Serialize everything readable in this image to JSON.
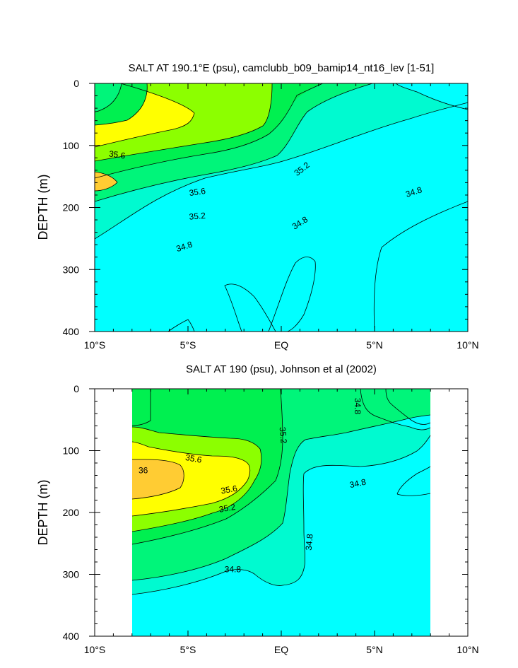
{
  "chart_data": [
    {
      "type": "contour",
      "title": "SALT AT 190.1°E (psu), camclubb_b09_bamip14_nt16_lev [1-51]",
      "ylabel": "DEPTH (m)",
      "xlim": [
        -10,
        10
      ],
      "ylim": [
        400,
        0
      ],
      "y_inverted": true,
      "x_ticks": [
        -10,
        -5,
        0,
        5,
        10
      ],
      "x_tick_labels": [
        "10°S",
        "5°S",
        "EQ",
        "5°N",
        "10°N"
      ],
      "y_ticks": [
        0,
        100,
        200,
        300,
        400
      ],
      "y_tick_labels": [
        "0",
        "100",
        "200",
        "300",
        "400"
      ],
      "data_extent_x": [
        -10,
        10
      ],
      "levels_fill": [
        {
          "min": null,
          "max": 34.8,
          "color": "#00ffff"
        },
        {
          "min": 34.8,
          "max": 35.0,
          "color": "#00fad0"
        },
        {
          "min": 35.0,
          "max": 35.2,
          "color": "#00f57a"
        },
        {
          "min": 35.2,
          "max": 35.4,
          "color": "#00f050"
        },
        {
          "min": 35.4,
          "max": 35.6,
          "color": "#8cff00"
        },
        {
          "min": 35.6,
          "max": 36.0,
          "color": "#ffff00"
        },
        {
          "min": 36.0,
          "max": null,
          "color": "#ffcc33"
        }
      ],
      "contour_labels": [
        {
          "text": "35.6",
          "x": -8.8,
          "y": 115,
          "angle": 8
        },
        {
          "text": "35.6",
          "x": -4.5,
          "y": 175,
          "angle": -8
        },
        {
          "text": "35.2",
          "x": 1.1,
          "y": 138,
          "angle": -38
        },
        {
          "text": "35.2",
          "x": -4.5,
          "y": 214,
          "angle": -5
        },
        {
          "text": "34.8",
          "x": -5.2,
          "y": 263,
          "angle": -18
        },
        {
          "text": "34.8",
          "x": 1.0,
          "y": 225,
          "angle": -32
        },
        {
          "text": "34.8",
          "x": 7.1,
          "y": 175,
          "angle": -18
        }
      ],
      "contours": [
        {
          "level": 34.8,
          "points": [
            [
              -10,
              338
            ],
            [
              -8,
              305
            ],
            [
              -6,
              272
            ],
            [
              -4,
              252
            ],
            [
              -2,
              241
            ],
            [
              0,
              232
            ],
            [
              2,
              218
            ],
            [
              3,
              210
            ],
            [
              5,
              198
            ],
            [
              7,
              180
            ],
            [
              9,
              158
            ],
            [
              10,
              145
            ]
          ]
        },
        {
          "level": 35.0,
          "points": [
            [
              -10,
              285
            ],
            [
              -8,
              266
            ],
            [
              -6,
              254
            ],
            [
              -4,
              244
            ],
            [
              -2,
              230
            ],
            [
              0,
              215
            ],
            [
              1,
              200
            ],
            [
              2,
              160
            ],
            [
              3,
              140
            ],
            [
              4,
              125
            ],
            [
              5.5,
              112
            ],
            [
              7,
              98
            ],
            [
              8,
              90
            ],
            [
              8.5,
              80
            ],
            [
              8,
              72
            ],
            [
              6,
              65
            ],
            [
              5,
              55
            ],
            [
              4.7,
              40
            ],
            [
              4.6,
              0
            ]
          ]
        },
        {
          "level": 35.2,
          "points": [
            [
              -10,
              252
            ],
            [
              -8,
              233
            ],
            [
              -6,
              222
            ],
            [
              -4,
              215
            ],
            [
              -2,
              200
            ],
            [
              -1,
              188
            ],
            [
              0,
              170
            ],
            [
              1,
              140
            ],
            [
              2,
              118
            ],
            [
              3,
              104
            ],
            [
              3.5,
              95
            ],
            [
              3.8,
              80
            ],
            [
              3.7,
              40
            ],
            [
              3.6,
              0
            ]
          ]
        },
        {
          "level": 35.4,
          "points": [
            [
              -10,
              228
            ],
            [
              -8,
              216
            ],
            [
              -6,
              204
            ],
            [
              -4,
              195
            ],
            [
              -2,
              182
            ],
            [
              -1,
              162
            ],
            [
              -0.7,
              120
            ],
            [
              -0.6,
              60
            ],
            [
              -0.6,
              0
            ]
          ]
        },
        {
          "level": 35.6,
          "points": [
            [
              -10,
              112
            ],
            [
              -8.5,
              118
            ],
            [
              -7,
              128
            ],
            [
              -5.5,
              140
            ],
            [
              -4.5,
              150
            ],
            [
              -4,
              162
            ],
            [
              -4.8,
              168
            ],
            [
              -6,
              175
            ],
            [
              -7.5,
              183
            ],
            [
              -9,
              192
            ],
            [
              -10,
              196
            ]
          ]
        }
      ]
    },
    {
      "type": "contour",
      "title": "SALT AT 190 (psu), Johnson et al (2002)",
      "ylabel": "DEPTH (m)",
      "xlim": [
        -10,
        10
      ],
      "ylim": [
        400,
        0
      ],
      "y_inverted": true,
      "x_ticks": [
        -10,
        -5,
        0,
        5,
        10
      ],
      "x_tick_labels": [
        "10°S",
        "5°S",
        "EQ",
        "5°N",
        "10°N"
      ],
      "y_ticks": [
        0,
        100,
        200,
        300,
        400
      ],
      "y_tick_labels": [
        "0",
        "100",
        "200",
        "300",
        "400"
      ],
      "data_extent_x": [
        -8,
        8
      ],
      "levels_fill": [
        {
          "min": null,
          "max": 34.8,
          "color": "#00ffff"
        },
        {
          "min": 34.8,
          "max": 35.0,
          "color": "#00fad0"
        },
        {
          "min": 35.0,
          "max": 35.2,
          "color": "#00f57a"
        },
        {
          "min": 35.2,
          "max": 35.4,
          "color": "#00f050"
        },
        {
          "min": 35.4,
          "max": 35.6,
          "color": "#8cff00"
        },
        {
          "min": 35.6,
          "max": 36.0,
          "color": "#ffff00"
        },
        {
          "min": 36.0,
          "max": null,
          "color": "#ffcc33"
        }
      ],
      "contour_labels": [
        {
          "text": "36",
          "x": -7.4,
          "y": 132,
          "angle": 0
        },
        {
          "text": "35.6",
          "x": -4.7,
          "y": 113,
          "angle": 10
        },
        {
          "text": "35.6",
          "x": -2.8,
          "y": 163,
          "angle": -10
        },
        {
          "text": "35.2",
          "x": -2.9,
          "y": 193,
          "angle": -10
        },
        {
          "text": "35.2",
          "x": 0.1,
          "y": 75,
          "angle": 85
        },
        {
          "text": "34.8",
          "x": -2.6,
          "y": 292,
          "angle": 0
        },
        {
          "text": "34.8",
          "x": 1.5,
          "y": 248,
          "angle": -85
        },
        {
          "text": "34.8",
          "x": 4.1,
          "y": 153,
          "angle": -12
        },
        {
          "text": "34.8",
          "x": 4.1,
          "y": 28,
          "angle": 90
        }
      ],
      "contours": [
        {
          "level": 34.8,
          "points": [
            [
              -8,
              332
            ],
            [
              -6,
              325
            ],
            [
              -4,
              310
            ],
            [
              -2,
              295
            ],
            [
              -1.5,
              290
            ],
            [
              -1,
              300
            ],
            [
              -0.5,
              312
            ],
            [
              0,
              318
            ],
            [
              1,
              312
            ],
            [
              1.5,
              288
            ],
            [
              1.5,
              255
            ],
            [
              1,
              240
            ],
            [
              1,
              200
            ],
            [
              1.1,
              160
            ],
            [
              2,
              150
            ],
            [
              4,
              154
            ],
            [
              5.5,
              146
            ],
            [
              6.5,
              130
            ],
            [
              8,
              105
            ]
          ]
        },
        {
          "level": 34.8,
          "points": [
            [
              6.4,
              185
            ],
            [
              6.4,
              175
            ],
            [
              7,
              160
            ],
            [
              8,
              145
            ],
            [
              8,
              175
            ],
            [
              7,
              183
            ],
            [
              6.4,
              185
            ]
          ]
        },
        {
          "level": 34.8,
          "points": [
            [
              4,
              0
            ],
            [
              4,
              35
            ],
            [
              4.5,
              55
            ],
            [
              5.5,
              62
            ],
            [
              6.5,
              68
            ],
            [
              7.5,
              70
            ],
            [
              8,
              70
            ]
          ]
        },
        {
          "level": 34.8,
          "points": [
            [
              5.6,
              0
            ],
            [
              5.6,
              40
            ],
            [
              6,
              50
            ],
            [
              7,
              55
            ],
            [
              7.6,
              60
            ],
            [
              8,
              56
            ]
          ]
        },
        {
          "level": 35.0,
          "points": [
            [
              -8,
              283
            ],
            [
              -6,
              278
            ],
            [
              -4,
              268
            ],
            [
              -2,
              250
            ],
            [
              -1,
              228
            ],
            [
              0,
              218
            ],
            [
              0.2,
              200
            ],
            [
              0.3,
              175
            ],
            [
              0.4,
              150
            ],
            [
              0.5,
              130
            ],
            [
              0.8,
              105
            ],
            [
              1.5,
              90
            ],
            [
              2.5,
              85
            ],
            [
              3.5,
              80
            ],
            [
              4.5,
              75
            ],
            [
              5.5,
              70
            ],
            [
              6.5,
              60
            ],
            [
              7.5,
              50
            ],
            [
              8,
              50
            ]
          ]
        },
        {
          "level": 35.2,
          "points": [
            [
              -8,
              258
            ],
            [
              -6,
              248
            ],
            [
              -4,
              232
            ],
            [
              -2,
              215
            ],
            [
              -1,
              190
            ],
            [
              -0.3,
              155
            ],
            [
              -0.1,
              120
            ],
            [
              0,
              80
            ],
            [
              -0.1,
              40
            ],
            [
              -0.2,
              0
            ]
          ]
        },
        {
          "level": 35.4,
          "points": [
            [
              -8,
              238
            ],
            [
              -6,
              228
            ],
            [
              -4,
              220
            ],
            [
              -2.5,
              205
            ],
            [
              -1.5,
              180
            ],
            [
              -1.2,
              150
            ],
            [
              -1.4,
              110
            ],
            [
              -2,
              90
            ],
            [
              -3,
              82
            ],
            [
              -5,
              78
            ],
            [
              -6.5,
              75
            ],
            [
              -7,
              70
            ],
            [
              -7.5,
              65
            ],
            [
              -8,
              65
            ]
          ]
        },
        {
          "level": 35.6,
          "points": [
            [
              -8,
              212
            ],
            [
              -6,
              205
            ],
            [
              -4,
              195
            ],
            [
              -2.5,
              180
            ],
            [
              -2,
              163
            ],
            [
              -1.8,
              140
            ],
            [
              -2.1,
              118
            ],
            [
              -3,
              108
            ],
            [
              -4.5,
              104
            ],
            [
              -6,
              100
            ],
            [
              -7.2,
              95
            ],
            [
              -8,
              90
            ]
          ]
        },
        {
          "level": 36.0,
          "points": [
            [
              -8,
              182
            ],
            [
              -6.5,
              178
            ],
            [
              -5.6,
              168
            ],
            [
              -5.4,
              155
            ],
            [
              -5.8,
              142
            ],
            [
              -7,
              135
            ],
            [
              -8,
              132
            ]
          ]
        }
      ]
    }
  ],
  "panels": [
    {
      "title": "SALT AT 190.1°E (psu), camclubb_b09_bamip14_nt16_lev [1-51]"
    },
    {
      "title": "SALT AT 190 (psu), Johnson et al (2002)"
    }
  ]
}
